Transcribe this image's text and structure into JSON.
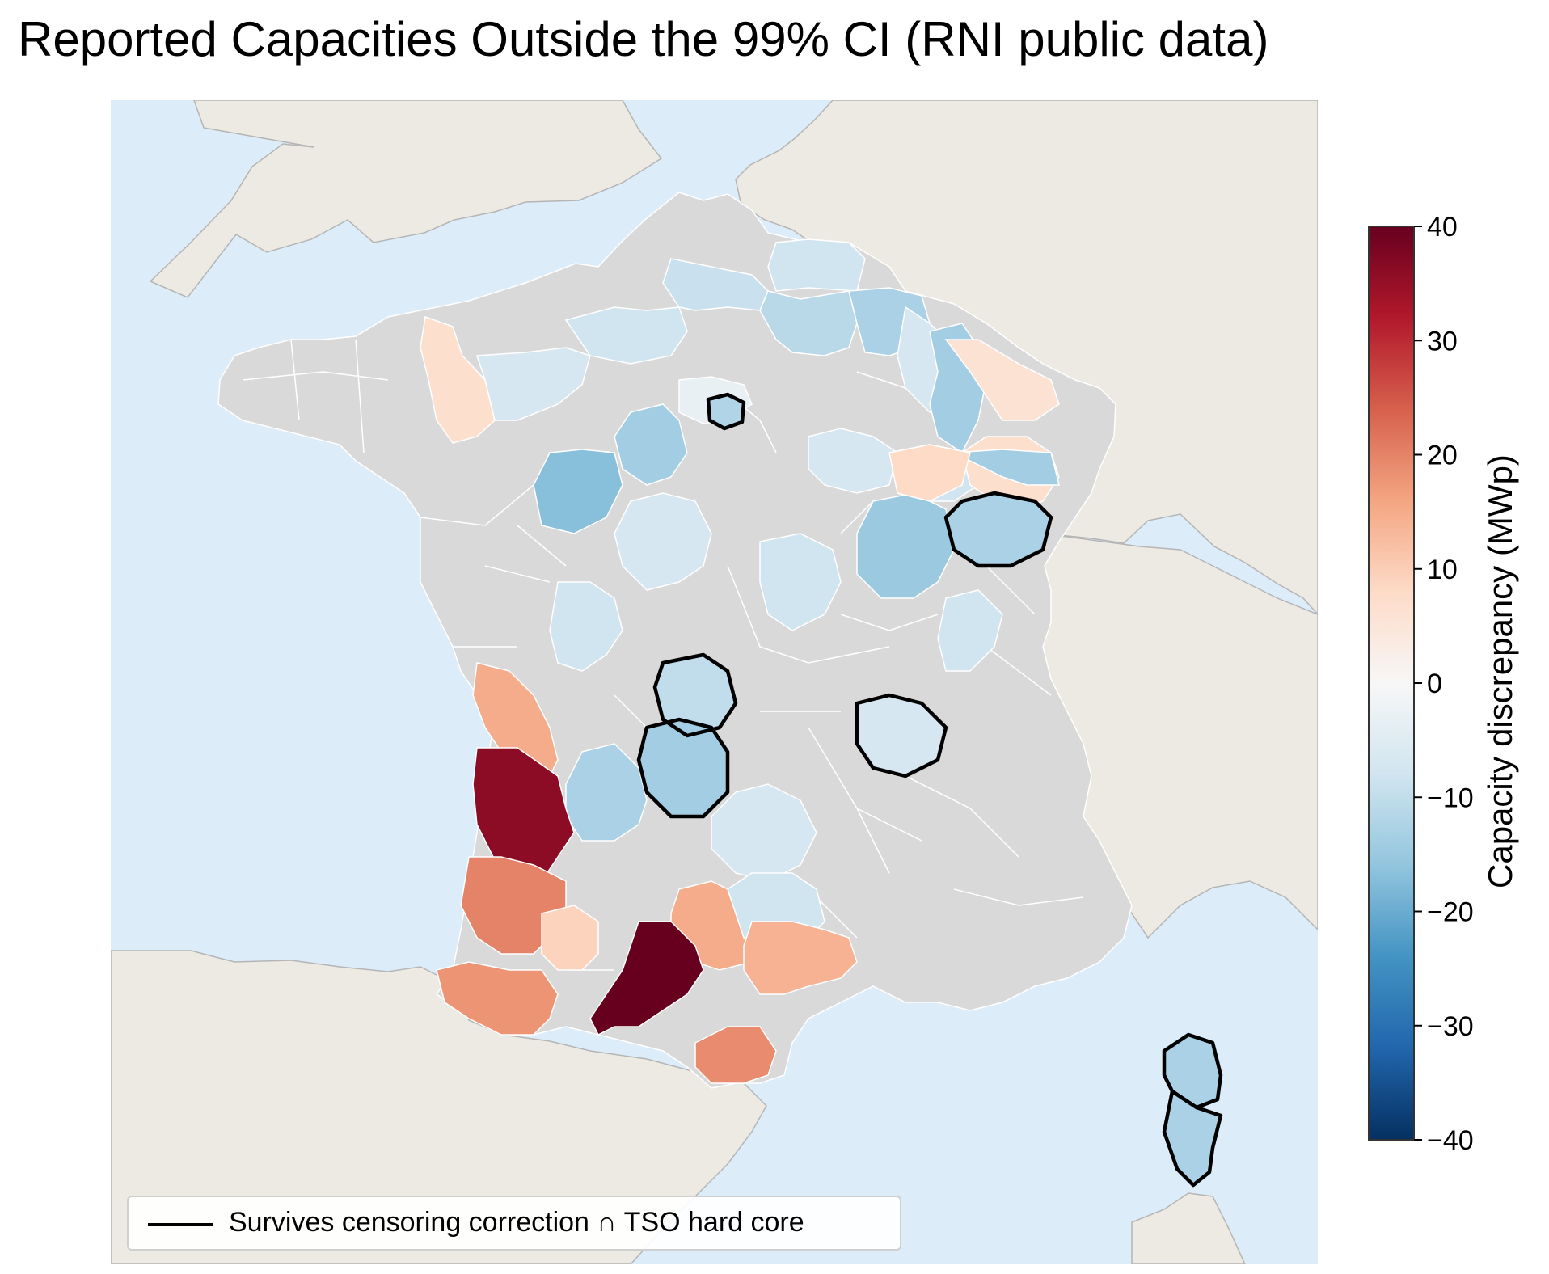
{
  "title": "Reported Capacities Outside the 99% CI (RNI public data)",
  "colors": {
    "sea": "#dcecf9",
    "land": "#eceae3",
    "no_data": "#d9d9d9",
    "highlight_outline": "#000000"
  },
  "colorbar": {
    "label": "Capacity discrepancy (MWp)",
    "colormap": "RdBu_r",
    "min": -40,
    "max": 40,
    "ticks": [
      40,
      30,
      20,
      10,
      0,
      -10,
      -20,
      -30,
      -40
    ],
    "tick_labels": [
      "40",
      "30",
      "20",
      "10",
      "0",
      "−10",
      "−20",
      "−30",
      "−40"
    ]
  },
  "legend": {
    "label": "Survives censoring correction ∩ TSO hard core"
  },
  "regions": [
    {
      "value": 7,
      "highlighted": false
    },
    {
      "value": -7,
      "highlighted": false
    },
    {
      "value": -8,
      "highlighted": false
    },
    {
      "value": -9,
      "highlighted": false
    },
    {
      "value": -11,
      "highlighted": false
    },
    {
      "value": -8,
      "highlighted": false
    },
    {
      "value": -3,
      "highlighted": false
    },
    {
      "value": -12,
      "highlighted": true
    },
    {
      "value": -14,
      "highlighted": false
    },
    {
      "value": -17,
      "highlighted": false
    },
    {
      "value": -13,
      "highlighted": false
    },
    {
      "value": -7,
      "highlighted": false
    },
    {
      "value": -7,
      "highlighted": false
    },
    {
      "value": -8,
      "highlighted": false
    },
    {
      "value": -14,
      "highlighted": false
    },
    {
      "value": 6,
      "highlighted": false
    },
    {
      "value": 7,
      "highlighted": false
    },
    {
      "value": -14,
      "highlighted": false
    },
    {
      "value": -13,
      "highlighted": true
    },
    {
      "value": -15,
      "highlighted": false
    },
    {
      "value": 8,
      "highlighted": false
    },
    {
      "value": -8,
      "highlighted": false
    },
    {
      "value": -8,
      "highlighted": false
    },
    {
      "value": -7,
      "highlighted": false
    },
    {
      "value": -10,
      "highlighted": true
    },
    {
      "value": 15,
      "highlighted": false
    },
    {
      "value": -8,
      "highlighted": false
    },
    {
      "value": -14,
      "highlighted": true
    },
    {
      "value": -13,
      "highlighted": false
    },
    {
      "value": 36,
      "highlighted": false
    },
    {
      "value": -7,
      "highlighted": true
    },
    {
      "value": -7,
      "highlighted": false
    },
    {
      "value": 20,
      "highlighted": false
    },
    {
      "value": 15,
      "highlighted": false
    },
    {
      "value": -8,
      "highlighted": false
    },
    {
      "value": 9,
      "highlighted": false
    },
    {
      "value": 40,
      "highlighted": false
    },
    {
      "value": 14,
      "highlighted": false
    },
    {
      "value": 18,
      "highlighted": false
    },
    {
      "value": 19,
      "highlighted": false
    },
    {
      "value": -13,
      "highlighted": true
    },
    {
      "value": -13,
      "highlighted": true
    }
  ]
}
